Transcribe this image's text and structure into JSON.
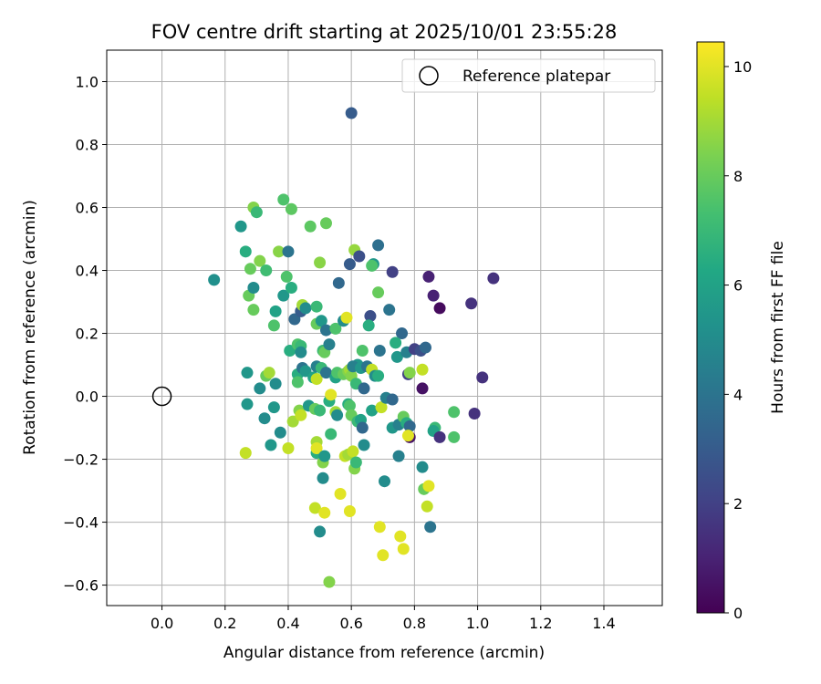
{
  "chart_data": {
    "type": "scatter",
    "title": "FOV centre drift starting at 2025/10/01 23:55:28",
    "xlabel": "Angular distance from reference (arcmin)",
    "ylabel": "Rotation from reference (arcmin)",
    "xlim": [
      -0.175,
      1.585
    ],
    "ylim": [
      -0.665,
      1.1
    ],
    "xticks": [
      0.0,
      0.2,
      0.4,
      0.6,
      0.8,
      1.0,
      1.2,
      1.4
    ],
    "yticks": [
      -0.6,
      -0.4,
      -0.2,
      0.0,
      0.2,
      0.4,
      0.6,
      0.8,
      1.0
    ],
    "grid": true,
    "legend": {
      "label": "Reference platepar",
      "location": "top-right"
    },
    "reference_point": {
      "x": 0.0,
      "y": 0.0
    },
    "colorbar": {
      "label": "Hours from first FF file",
      "colormap": "viridis",
      "range": [
        0,
        10.45
      ],
      "ticks": [
        0,
        2,
        4,
        6,
        8,
        10
      ]
    },
    "series": [
      {
        "name": "FOV centre drift",
        "points": [
          [
            0.6,
            0.9,
            3.0
          ],
          [
            0.165,
            0.37,
            5.2
          ],
          [
            0.25,
            0.54,
            5.5
          ],
          [
            0.29,
            0.6,
            8.5
          ],
          [
            0.3,
            0.585,
            7.0
          ],
          [
            0.385,
            0.625,
            7.5
          ],
          [
            0.41,
            0.595,
            7.8
          ],
          [
            0.47,
            0.54,
            7.8
          ],
          [
            0.52,
            0.55,
            8.0
          ],
          [
            0.265,
            0.46,
            6.5
          ],
          [
            0.28,
            0.405,
            8.0
          ],
          [
            0.31,
            0.43,
            8.5
          ],
          [
            0.33,
            0.4,
            7.2
          ],
          [
            0.37,
            0.46,
            8.6
          ],
          [
            0.4,
            0.46,
            4.0
          ],
          [
            0.5,
            0.425,
            8.6
          ],
          [
            0.61,
            0.465,
            8.8
          ],
          [
            0.595,
            0.42,
            3.0
          ],
          [
            0.625,
            0.445,
            2.5
          ],
          [
            0.67,
            0.42,
            5.5
          ],
          [
            0.665,
            0.415,
            7.5
          ],
          [
            0.685,
            0.48,
            3.8
          ],
          [
            0.73,
            0.395,
            2.0
          ],
          [
            0.845,
            0.38,
            1.0
          ],
          [
            0.86,
            0.32,
            1.0
          ],
          [
            0.88,
            0.28,
            0.3
          ],
          [
            0.98,
            0.295,
            1.5
          ],
          [
            1.05,
            0.375,
            1.5
          ],
          [
            0.275,
            0.32,
            8.0
          ],
          [
            0.29,
            0.345,
            5.0
          ],
          [
            0.29,
            0.275,
            8.0
          ],
          [
            0.355,
            0.225,
            7.5
          ],
          [
            0.36,
            0.27,
            6.0
          ],
          [
            0.385,
            0.32,
            5.5
          ],
          [
            0.395,
            0.38,
            7.5
          ],
          [
            0.41,
            0.345,
            6.5
          ],
          [
            0.42,
            0.245,
            3.5
          ],
          [
            0.44,
            0.27,
            3.0
          ],
          [
            0.445,
            0.29,
            9.0
          ],
          [
            0.455,
            0.28,
            5.0
          ],
          [
            0.49,
            0.285,
            7.0
          ],
          [
            0.49,
            0.23,
            8.0
          ],
          [
            0.505,
            0.24,
            5.5
          ],
          [
            0.52,
            0.21,
            4.0
          ],
          [
            0.55,
            0.215,
            7.5
          ],
          [
            0.56,
            0.36,
            3.5
          ],
          [
            0.575,
            0.24,
            5.0
          ],
          [
            0.585,
            0.25,
            10.0
          ],
          [
            0.66,
            0.255,
            2.5
          ],
          [
            0.655,
            0.225,
            6.5
          ],
          [
            0.685,
            0.33,
            8.0
          ],
          [
            0.72,
            0.275,
            4.0
          ],
          [
            0.76,
            0.2,
            3.5
          ],
          [
            0.405,
            0.145,
            6.5
          ],
          [
            0.43,
            0.165,
            7.5
          ],
          [
            0.44,
            0.16,
            7.0
          ],
          [
            0.44,
            0.14,
            5.0
          ],
          [
            0.51,
            0.145,
            7.0
          ],
          [
            0.515,
            0.14,
            8.0
          ],
          [
            0.53,
            0.165,
            4.5
          ],
          [
            0.62,
            0.1,
            5.5
          ],
          [
            0.635,
            0.145,
            7.5
          ],
          [
            0.69,
            0.145,
            4.0
          ],
          [
            0.74,
            0.17,
            6.5
          ],
          [
            0.745,
            0.125,
            5.5
          ],
          [
            0.775,
            0.14,
            4.5
          ],
          [
            0.8,
            0.15,
            2.0
          ],
          [
            0.82,
            0.145,
            2.5
          ],
          [
            0.835,
            0.155,
            3.5
          ],
          [
            0.27,
            0.075,
            5.5
          ],
          [
            0.31,
            0.025,
            5.0
          ],
          [
            0.33,
            0.065,
            8.0
          ],
          [
            0.34,
            0.075,
            9.0
          ],
          [
            0.36,
            0.04,
            5.0
          ],
          [
            0.43,
            0.07,
            6.5
          ],
          [
            0.43,
            0.045,
            7.5
          ],
          [
            0.445,
            0.09,
            4.0
          ],
          [
            0.455,
            0.08,
            5.5
          ],
          [
            0.48,
            0.06,
            6.0
          ],
          [
            0.49,
            0.095,
            4.5
          ],
          [
            0.49,
            0.055,
            9.5
          ],
          [
            0.505,
            0.09,
            7.0
          ],
          [
            0.52,
            0.075,
            4.0
          ],
          [
            0.55,
            0.06,
            6.0
          ],
          [
            0.555,
            0.075,
            7.5
          ],
          [
            0.575,
            0.07,
            8.0
          ],
          [
            0.59,
            0.08,
            8.5
          ],
          [
            0.595,
            0.085,
            9.0
          ],
          [
            0.6,
            0.065,
            8.5
          ],
          [
            0.605,
            0.095,
            4.5
          ],
          [
            0.615,
            0.04,
            7.0
          ],
          [
            0.63,
            0.09,
            5.5
          ],
          [
            0.64,
            0.025,
            3.5
          ],
          [
            0.65,
            0.095,
            4.0
          ],
          [
            0.665,
            0.085,
            9.5
          ],
          [
            0.675,
            0.065,
            5.0
          ],
          [
            0.685,
            0.065,
            6.5
          ],
          [
            0.78,
            0.07,
            2.0
          ],
          [
            0.785,
            0.075,
            8.5
          ],
          [
            0.825,
            0.085,
            9.5
          ],
          [
            0.825,
            0.025,
            0.5
          ],
          [
            1.015,
            0.06,
            1.5
          ],
          [
            0.27,
            -0.025,
            5.5
          ],
          [
            0.325,
            -0.07,
            5.0
          ],
          [
            0.355,
            -0.035,
            5.5
          ],
          [
            0.375,
            -0.115,
            5.0
          ],
          [
            0.415,
            -0.08,
            9.0
          ],
          [
            0.435,
            -0.045,
            8.5
          ],
          [
            0.44,
            -0.06,
            9.5
          ],
          [
            0.465,
            -0.03,
            5.5
          ],
          [
            0.485,
            -0.04,
            8.0
          ],
          [
            0.5,
            -0.045,
            7.0
          ],
          [
            0.53,
            -0.015,
            6.5
          ],
          [
            0.535,
            0.005,
            10.0
          ],
          [
            0.55,
            -0.05,
            9.0
          ],
          [
            0.555,
            -0.06,
            5.0
          ],
          [
            0.59,
            -0.025,
            6.5
          ],
          [
            0.595,
            -0.03,
            7.5
          ],
          [
            0.6,
            -0.06,
            8.0
          ],
          [
            0.62,
            -0.08,
            7.0
          ],
          [
            0.63,
            -0.075,
            6.0
          ],
          [
            0.635,
            -0.1,
            3.5
          ],
          [
            0.665,
            -0.045,
            6.0
          ],
          [
            0.695,
            -0.035,
            9.5
          ],
          [
            0.71,
            -0.005,
            4.5
          ],
          [
            0.73,
            -0.01,
            3.5
          ],
          [
            0.73,
            -0.1,
            5.5
          ],
          [
            0.75,
            -0.09,
            4.5
          ],
          [
            0.765,
            -0.065,
            8.0
          ],
          [
            0.775,
            -0.085,
            6.5
          ],
          [
            0.785,
            -0.095,
            3.5
          ],
          [
            0.785,
            -0.13,
            0.5
          ],
          [
            0.78,
            -0.125,
            10.0
          ],
          [
            0.865,
            -0.1,
            7.0
          ],
          [
            0.86,
            -0.11,
            6.0
          ],
          [
            0.88,
            -0.13,
            1.5
          ],
          [
            0.925,
            -0.05,
            7.5
          ],
          [
            0.925,
            -0.13,
            7.5
          ],
          [
            0.99,
            -0.055,
            1.5
          ],
          [
            0.265,
            -0.18,
            9.5
          ],
          [
            0.345,
            -0.155,
            5.5
          ],
          [
            0.4,
            -0.165,
            9.5
          ],
          [
            0.49,
            -0.18,
            6.5
          ],
          [
            0.49,
            -0.145,
            9.0
          ],
          [
            0.49,
            -0.165,
            10.0
          ],
          [
            0.51,
            -0.21,
            8.5
          ],
          [
            0.515,
            -0.19,
            5.5
          ],
          [
            0.535,
            -0.12,
            7.0
          ],
          [
            0.58,
            -0.19,
            9.5
          ],
          [
            0.59,
            -0.185,
            9.0
          ],
          [
            0.605,
            -0.175,
            9.5
          ],
          [
            0.61,
            -0.23,
            8.5
          ],
          [
            0.615,
            -0.21,
            7.0
          ],
          [
            0.64,
            -0.155,
            5.0
          ],
          [
            0.705,
            -0.27,
            5.0
          ],
          [
            0.75,
            -0.19,
            4.5
          ],
          [
            0.825,
            -0.225,
            5.0
          ],
          [
            0.83,
            -0.295,
            8.0
          ],
          [
            0.845,
            -0.285,
            10.0
          ],
          [
            0.51,
            -0.26,
            5.0
          ],
          [
            0.485,
            -0.355,
            9.5
          ],
          [
            0.515,
            -0.37,
            10.0
          ],
          [
            0.565,
            -0.31,
            10.0
          ],
          [
            0.595,
            -0.365,
            10.0
          ],
          [
            0.69,
            -0.415,
            10.0
          ],
          [
            0.755,
            -0.445,
            10.0
          ],
          [
            0.765,
            -0.485,
            10.0
          ],
          [
            0.7,
            -0.505,
            10.0
          ],
          [
            0.53,
            -0.59,
            8.5
          ],
          [
            0.5,
            -0.43,
            5.0
          ],
          [
            0.84,
            -0.35,
            9.5
          ],
          [
            0.85,
            -0.415,
            4.0
          ]
        ]
      }
    ]
  }
}
